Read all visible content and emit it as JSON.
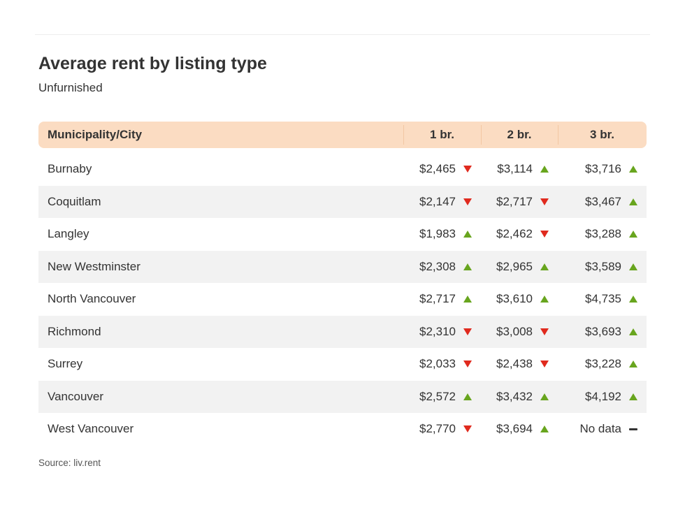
{
  "page": {
    "title": "Average rent by listing type",
    "subtitle": "Unfurnished",
    "source": "Source: liv.rent"
  },
  "colors": {
    "up": "#68a51e",
    "down": "#e02a1e",
    "neutral": "#333333",
    "header_bg": "#fbdcc2",
    "header_divider": "#f2c7a3",
    "row_alt_bg": "#f2f2f2"
  },
  "chart_data": {
    "type": "table",
    "title": "Average rent by listing type",
    "subtitle": "Unfurnished",
    "source": "Source: liv.rent",
    "columns": [
      "Municipality/City",
      "1 br.",
      "2 br.",
      "3 br."
    ],
    "trend_legend": {
      "up": "green up triangle (rent increased)",
      "down": "red down triangle (rent decreased)",
      "none": "dash (no data / no change)"
    },
    "rows": [
      {
        "city": "Burnaby",
        "br1": "$2,465",
        "br1_trend": "down",
        "br2": "$3,114",
        "br2_trend": "up",
        "br3": "$3,716",
        "br3_trend": "up"
      },
      {
        "city": "Coquitlam",
        "br1": "$2,147",
        "br1_trend": "down",
        "br2": "$2,717",
        "br2_trend": "down",
        "br3": "$3,467",
        "br3_trend": "up"
      },
      {
        "city": "Langley",
        "br1": "$1,983",
        "br1_trend": "up",
        "br2": "$2,462",
        "br2_trend": "down",
        "br3": "$3,288",
        "br3_trend": "up"
      },
      {
        "city": "New Westminster",
        "br1": "$2,308",
        "br1_trend": "up",
        "br2": "$2,965",
        "br2_trend": "up",
        "br3": "$3,589",
        "br3_trend": "up"
      },
      {
        "city": "North Vancouver",
        "br1": "$2,717",
        "br1_trend": "up",
        "br2": "$3,610",
        "br2_trend": "up",
        "br3": "$4,735",
        "br3_trend": "up"
      },
      {
        "city": "Richmond",
        "br1": "$2,310",
        "br1_trend": "down",
        "br2": "$3,008",
        "br2_trend": "down",
        "br3": "$3,693",
        "br3_trend": "up"
      },
      {
        "city": "Surrey",
        "br1": "$2,033",
        "br1_trend": "down",
        "br2": "$2,438",
        "br2_trend": "down",
        "br3": "$3,228",
        "br3_trend": "up"
      },
      {
        "city": "Vancouver",
        "br1": "$2,572",
        "br1_trend": "up",
        "br2": "$3,432",
        "br2_trend": "up",
        "br3": "$4,192",
        "br3_trend": "up"
      },
      {
        "city": "West Vancouver",
        "br1": "$2,770",
        "br1_trend": "down",
        "br2": "$3,694",
        "br2_trend": "up",
        "br3": "No data",
        "br3_trend": "none"
      }
    ]
  }
}
